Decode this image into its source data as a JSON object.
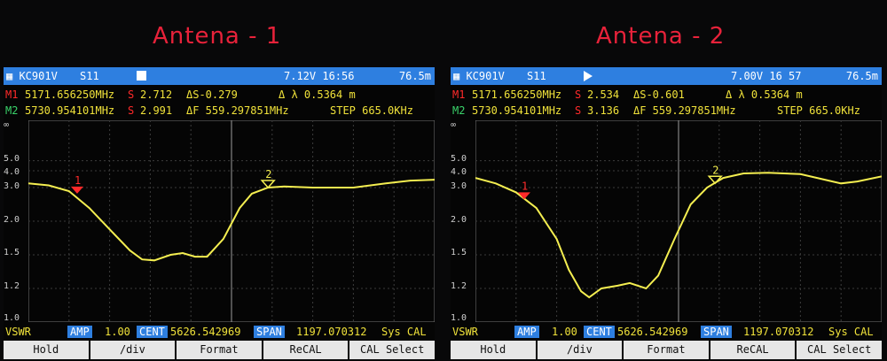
{
  "captions": [
    "Antena - 1",
    "Antena - 2"
  ],
  "screens": [
    {
      "model": "KC901V",
      "mode": "S11",
      "indicator": "square-icon",
      "voltage_time": "7.12V  16:56",
      "battery": "76.5m",
      "m1": {
        "label": "M1",
        "freq": "5171.656250MHz",
        "s_label": "S",
        "s_value": "2.712",
        "ds": "ΔS-0.279",
        "dl": "Δ λ 0.5364 m"
      },
      "m2": {
        "label": "M2",
        "freq": "5730.954101MHz",
        "s_label": "S",
        "s_value": "2.991",
        "df": "ΔF 559.297851MHz",
        "step": "STEP 665.0KHz"
      },
      "y_ticks": [
        "∞",
        "5.0",
        "4.0",
        "3.0",
        "2.0",
        "1.5",
        "1.2",
        "1.0"
      ],
      "bottom": {
        "mode": "VSWR",
        "amp_tag": "AMP",
        "amp_value": "1.00",
        "cent_tag": "CENT",
        "cent_value": "5626.542969",
        "span_tag": "SPAN",
        "span_value": "1197.070312",
        "sys": "Sys CAL"
      },
      "softkeys": [
        "Hold",
        "/div",
        "Format",
        "ReCAL",
        "CAL Select"
      ],
      "markers": [
        {
          "label": "1",
          "x": 0.12,
          "vswr": 2.75
        },
        {
          "label": "2",
          "x": 0.59,
          "vswr": 3.0
        }
      ],
      "trace_color": "#f4ee50",
      "curve": [
        [
          0,
          3.2
        ],
        [
          0.05,
          3.1
        ],
        [
          0.1,
          2.85
        ],
        [
          0.15,
          2.3
        ],
        [
          0.2,
          1.85
        ],
        [
          0.25,
          1.55
        ],
        [
          0.28,
          1.45
        ],
        [
          0.31,
          1.44
        ],
        [
          0.35,
          1.5
        ],
        [
          0.38,
          1.52
        ],
        [
          0.41,
          1.48
        ],
        [
          0.44,
          1.48
        ],
        [
          0.48,
          1.7
        ],
        [
          0.52,
          2.3
        ],
        [
          0.55,
          2.75
        ],
        [
          0.59,
          3.0
        ],
        [
          0.63,
          3.05
        ],
        [
          0.7,
          3.0
        ],
        [
          0.8,
          3.0
        ],
        [
          0.88,
          3.2
        ],
        [
          0.94,
          3.35
        ],
        [
          1.0,
          3.4
        ]
      ]
    },
    {
      "model": "KC901V",
      "mode": "S11",
      "indicator": "play-icon",
      "voltage_time": "7.00V  16 57",
      "battery": "76.5m",
      "m1": {
        "label": "M1",
        "freq": "5171.656250MHz",
        "s_label": "S",
        "s_value": "2.534",
        "ds": "ΔS-0.601",
        "dl": "Δ λ 0.5364 m"
      },
      "m2": {
        "label": "M2",
        "freq": "5730.954101MHz",
        "s_label": "S",
        "s_value": "3.136",
        "df": "ΔF 559.297851MHz",
        "step": "STEP 665.0KHz"
      },
      "y_ticks": [
        "∞",
        "5.0",
        "4.0",
        "3.0",
        "2.0",
        "1.5",
        "1.2",
        "1.0"
      ],
      "bottom": {
        "mode": "VSWR",
        "amp_tag": "AMP",
        "amp_value": "1.00",
        "cent_tag": "CENT",
        "cent_value": "5626.542969",
        "span_tag": "SPAN",
        "span_value": "1197.070312",
        "sys": "Sys CAL"
      },
      "softkeys": [
        "Hold",
        "/div",
        "Format",
        "ReCAL",
        "CAL Select"
      ],
      "markers": [
        {
          "label": "1",
          "x": 0.12,
          "vswr": 2.55
        },
        {
          "label": "2",
          "x": 0.59,
          "vswr": 3.2
        }
      ],
      "trace_color": "#f4ee50",
      "curve": [
        [
          0,
          3.5
        ],
        [
          0.05,
          3.2
        ],
        [
          0.1,
          2.8
        ],
        [
          0.15,
          2.3
        ],
        [
          0.2,
          1.7
        ],
        [
          0.23,
          1.35
        ],
        [
          0.26,
          1.18
        ],
        [
          0.28,
          1.14
        ],
        [
          0.31,
          1.2
        ],
        [
          0.35,
          1.22
        ],
        [
          0.38,
          1.24
        ],
        [
          0.42,
          1.2
        ],
        [
          0.45,
          1.3
        ],
        [
          0.49,
          1.7
        ],
        [
          0.53,
          2.4
        ],
        [
          0.57,
          3.0
        ],
        [
          0.61,
          3.5
        ],
        [
          0.66,
          3.8
        ],
        [
          0.72,
          3.85
        ],
        [
          0.8,
          3.75
        ],
        [
          0.86,
          3.4
        ],
        [
          0.9,
          3.2
        ],
        [
          0.94,
          3.3
        ],
        [
          1.0,
          3.6
        ]
      ]
    }
  ]
}
